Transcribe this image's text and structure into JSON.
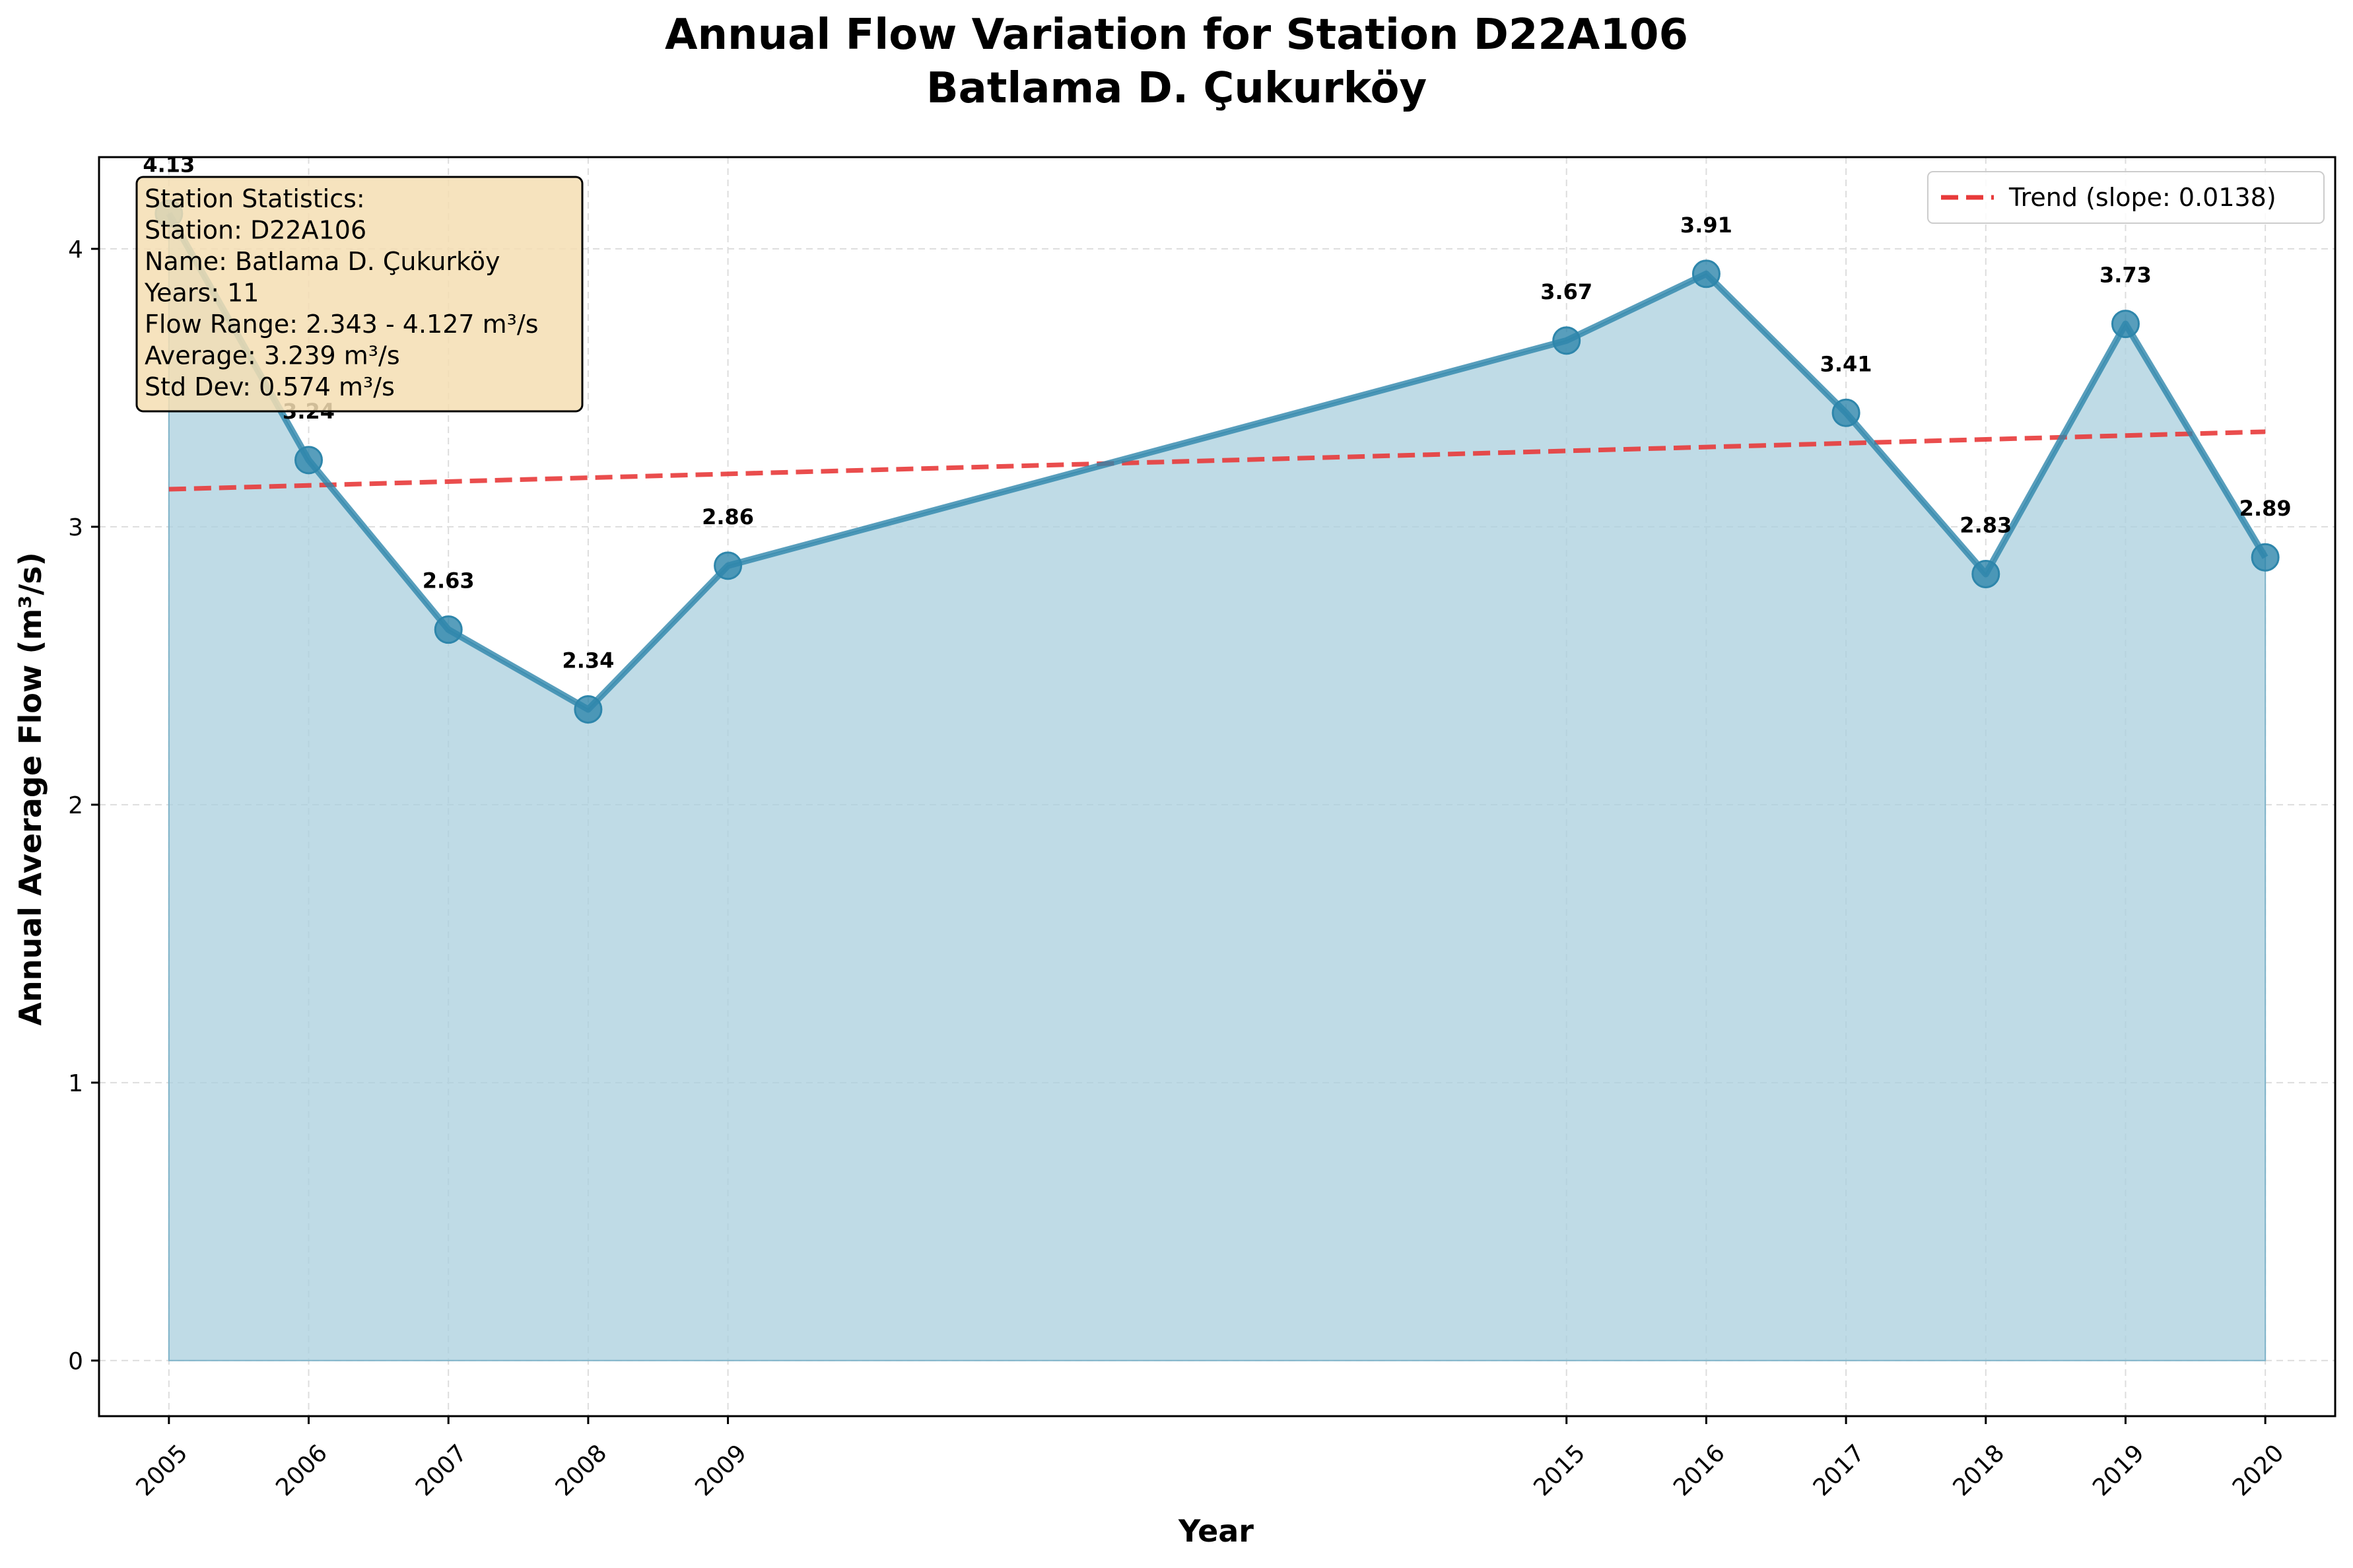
{
  "chart_data": {
    "type": "line",
    "title_line1": "Annual Flow Variation for Station D22A106",
    "title_line2": "Batlama D. Çukurköy",
    "xlabel": "Year",
    "ylabel": "Annual Average Flow (m³/s)",
    "x": [
      2005,
      2006,
      2007,
      2008,
      2009,
      2015,
      2016,
      2017,
      2018,
      2019,
      2020
    ],
    "values": [
      4.127,
      3.24,
      2.63,
      2.343,
      2.86,
      3.67,
      3.91,
      3.41,
      2.83,
      3.73,
      2.89
    ],
    "value_labels": [
      "4.13",
      "3.24",
      "2.63",
      "2.34",
      "2.86",
      "3.67",
      "3.91",
      "3.41",
      "2.83",
      "3.73",
      "2.89"
    ],
    "x_tick_labels": [
      "2005",
      "2006",
      "2007",
      "2008",
      "2009",
      "2015",
      "2016",
      "2017",
      "2018",
      "2019",
      "2020"
    ],
    "y_ticks": [
      0,
      1,
      2,
      3,
      4
    ],
    "y_tick_labels": [
      "0",
      "1",
      "2",
      "3",
      "4"
    ],
    "xlim": [
      2004.5,
      2020.5
    ],
    "ylim": [
      -0.2,
      4.33
    ],
    "grid": true,
    "legend_position": "top-right",
    "trend": {
      "label": "Trend (slope: 0.0138)",
      "start": [
        2005,
        3.135
      ],
      "end": [
        2020,
        3.342
      ]
    },
    "stats_box": {
      "position": "top-left",
      "lines": [
        "Station Statistics:",
        "Station: D22A106",
        "Name: Batlama D. Çukurköy",
        "Years: 11",
        "Flow Range: 2.343 - 4.127 m³/s",
        "Average: 3.239 m³/s",
        "Std Dev: 0.574 m³/s"
      ]
    },
    "colors": {
      "line": "#2e86ab",
      "fill": "#a9cfdd",
      "trend": "#e83a3a",
      "stats_bg": "#f5deb3",
      "grid": "#dddddd"
    }
  }
}
